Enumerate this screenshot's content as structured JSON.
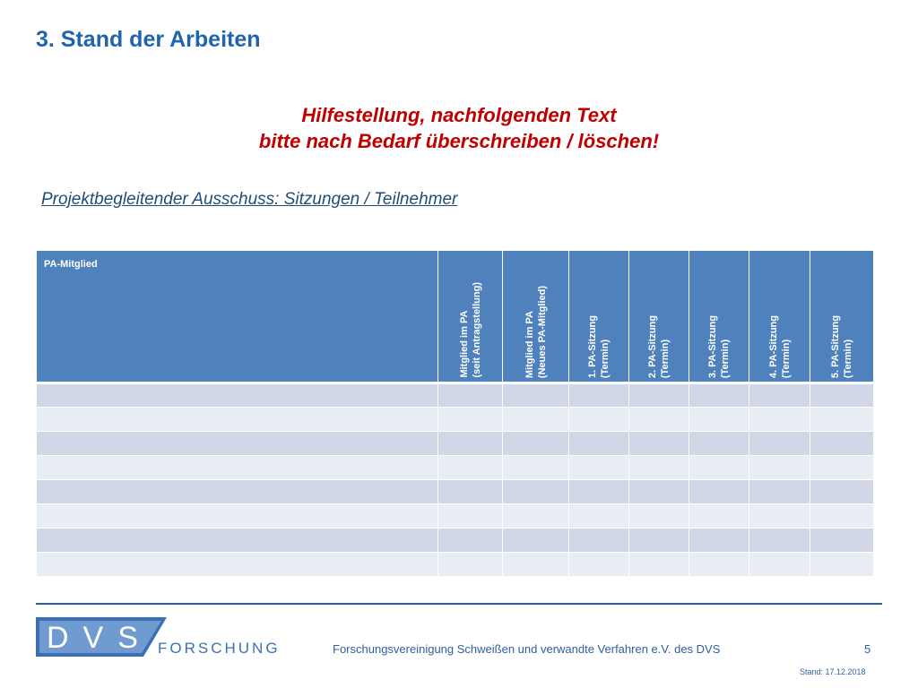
{
  "slide": {
    "title": "3. Stand der Arbeiten",
    "hint_line1": "Hilfestellung, nachfolgenden Text",
    "hint_line2": "bitte nach Bedarf überschreiben / löschen!",
    "subtitle": "Projektbegleitender Ausschuss: Sitzungen / Teilnehmer"
  },
  "table": {
    "columns": [
      "PA-Mitglied",
      "Mitglied im PA\n(seit Antragstellung)",
      "Mitglied im PA\n(Neues PA-Mitglied)",
      "1. PA-Sitzung\n(Termin)",
      "2. PA-Sitzung\n(Termin)",
      "3. PA-Sitzung\n(Termin)",
      "4. PA-Sitzung\n(Termin)",
      "5. PA-Sitzung\n(Termin)"
    ],
    "rows": [
      [
        "",
        "",
        "",
        "",
        "",
        "",
        "",
        ""
      ],
      [
        "",
        "",
        "",
        "",
        "",
        "",
        "",
        ""
      ],
      [
        "",
        "",
        "",
        "",
        "",
        "",
        "",
        ""
      ],
      [
        "",
        "",
        "",
        "",
        "",
        "",
        "",
        ""
      ],
      [
        "",
        "",
        "",
        "",
        "",
        "",
        "",
        ""
      ],
      [
        "",
        "",
        "",
        "",
        "",
        "",
        "",
        ""
      ],
      [
        "",
        "",
        "",
        "",
        "",
        "",
        "",
        ""
      ],
      [
        "",
        "",
        "",
        "",
        "",
        "",
        "",
        ""
      ]
    ]
  },
  "footer": {
    "logo_letters": "DVS",
    "logo_text": "FORSCHUNG",
    "org": "Forschungsvereinigung Schweißen und verwandte Verfahren e.V. des DVS",
    "page": "5",
    "stand": "Stand: 17.12.2018"
  },
  "colors": {
    "title": "#1f64ad",
    "hint": "#c00000",
    "header": "#4f81bd",
    "row_odd": "#d0d8e8",
    "row_even": "#e9edf4"
  }
}
